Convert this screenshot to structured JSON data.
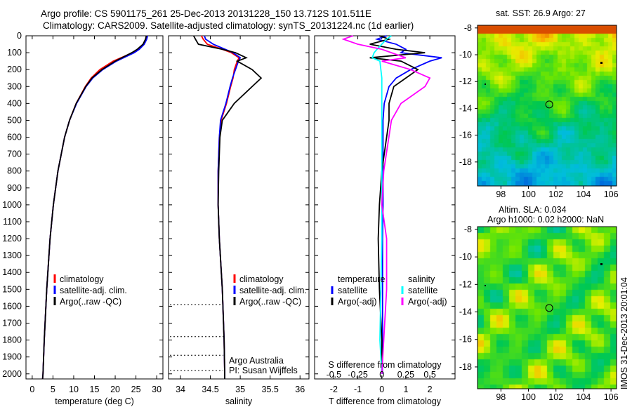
{
  "title_line1": "Argo profile: CS 5901175_261 25-Dec-2013 20131228_150 13.712S 101.511E",
  "title_line2": "Climatology: CARS2009. Satellite-adjusted climatology: synTS_20131224.nc (1d earlier)",
  "colors": {
    "clim": "#ff0000",
    "sat": "#0000ff",
    "argo": "#000000",
    "s_sat": "#00ffff",
    "s_argo": "#ff00ff"
  },
  "chart_data": [
    {
      "type": "line",
      "name": "temperature",
      "xlabel": "temperature (deg C)",
      "ylabel": "",
      "xlim": [
        -1.5,
        31.5
      ],
      "ylim": [
        2030,
        0
      ],
      "xticks": [
        "0",
        "5",
        "10",
        "15",
        "20",
        "25",
        "30"
      ],
      "xtick_vals": [
        0,
        5,
        10,
        15,
        20,
        25,
        30
      ],
      "yticks": [
        "0",
        "100",
        "200",
        "300",
        "400",
        "500",
        "600",
        "700",
        "800",
        "900",
        "1000",
        "1100",
        "1200",
        "1300",
        "1400",
        "1500",
        "1600",
        "1700",
        "1800",
        "1900",
        "2000"
      ],
      "depth": [
        0,
        20,
        50,
        80,
        100,
        150,
        200,
        250,
        300,
        400,
        500,
        600,
        800,
        1000,
        1200,
        1500,
        1800,
        2000,
        2030
      ],
      "series": [
        {
          "name": "climatology",
          "color": "clim",
          "values": [
            27.6,
            27.4,
            26.8,
            25.4,
            24.2,
            19.5,
            16.3,
            14.2,
            12.8,
            10.6,
            9.0,
            7.8,
            6.2,
            5.1,
            4.3,
            3.5,
            2.9,
            2.6,
            2.5
          ]
        },
        {
          "name": "satellite-adj. clim.",
          "color": "sat",
          "values": [
            27.8,
            27.6,
            27.0,
            25.8,
            24.6,
            20.3,
            17.0,
            14.6,
            13.0,
            10.7,
            9.0,
            7.8,
            6.2,
            5.1,
            4.3,
            3.5,
            2.9,
            2.6,
            2.5
          ]
        },
        {
          "name": "Argo(..raw -QC)",
          "color": "argo",
          "values": [
            27.5,
            27.3,
            26.7,
            25.3,
            24.0,
            20.0,
            16.8,
            14.4,
            12.9,
            10.6,
            9.0,
            7.8,
            6.2,
            5.1,
            4.3,
            3.5,
            2.9,
            2.6,
            2.5
          ]
        }
      ],
      "legend": [
        "climatology",
        "satellite-adj. clim.",
        "Argo(..raw -QC)"
      ],
      "legend_position": "lower-center"
    },
    {
      "type": "line",
      "name": "salinity",
      "xlabel": "salinity",
      "xlim": [
        33.8,
        36.15
      ],
      "ylim": [
        2030,
        0
      ],
      "xticks": [
        "34",
        "34.5",
        "35",
        "35.5",
        "36"
      ],
      "xtick_vals": [
        34,
        34.5,
        35,
        35.5,
        36
      ],
      "depth": [
        0,
        20,
        50,
        80,
        100,
        130,
        150,
        200,
        250,
        300,
        400,
        500,
        600,
        800,
        1000,
        1200,
        1500,
        1800,
        2000,
        2030
      ],
      "series": [
        {
          "name": "climatology",
          "color": "clim",
          "values": [
            34.35,
            34.38,
            34.45,
            34.7,
            34.85,
            34.98,
            34.95,
            34.9,
            34.88,
            34.84,
            34.77,
            34.68,
            34.65,
            34.63,
            34.63,
            34.65,
            34.7,
            34.73,
            34.74,
            34.74
          ]
        },
        {
          "name": "satellite-adj. clim.",
          "color": "sat",
          "values": [
            34.4,
            34.42,
            34.55,
            34.75,
            34.88,
            35.0,
            34.97,
            34.92,
            34.87,
            34.83,
            34.76,
            34.67,
            34.65,
            34.63,
            34.63,
            34.65,
            34.7,
            34.73,
            34.74,
            34.74
          ]
        },
        {
          "name": "Argo(..raw -QC)",
          "color": "argo",
          "values": [
            34.22,
            34.25,
            34.3,
            34.7,
            34.92,
            35.1,
            34.95,
            35.2,
            35.35,
            35.2,
            34.9,
            34.7,
            34.66,
            34.64,
            34.63,
            34.65,
            34.7,
            34.73,
            34.74,
            34.74
          ]
        }
      ],
      "legend": [
        "climatology",
        "satellite-adj. clim.",
        "Argo(..raw -QC)"
      ],
      "legend_position": "lower-center",
      "annotations": [
        "Argo Australia",
        "PI: Susan Wijffels"
      ],
      "marker_depths": [
        1590,
        1780,
        1890,
        1980
      ]
    },
    {
      "type": "line",
      "name": "differences",
      "xlabel": "T difference from climatology",
      "x2label": "S difference from climatology",
      "xlim": [
        -2.8,
        3.05
      ],
      "ylim": [
        2030,
        0
      ],
      "xticks": [
        "-2",
        "-1",
        "0",
        "1",
        "2"
      ],
      "xtick_vals": [
        -2,
        -1,
        0,
        1,
        2
      ],
      "x2ticks": [
        "-0.5",
        "-0.25",
        "0",
        "0.25",
        "0.5"
      ],
      "x2tick_vals": [
        -0.5,
        -0.25,
        0,
        0.25,
        0.5
      ],
      "depth": [
        0,
        20,
        50,
        80,
        100,
        130,
        150,
        200,
        250,
        300,
        400,
        500,
        800,
        1000,
        1200,
        1500,
        1800,
        2000
      ],
      "series": [
        {
          "name": "temperature satellite",
          "color": "sat",
          "scale": "T",
          "values": [
            0.2,
            -0.2,
            0.6,
            1.0,
            0.8,
            2.5,
            2.0,
            1.2,
            0.6,
            0.3,
            0.1,
            0.05,
            0.05,
            0.05,
            0.03,
            0.03,
            0.03,
            0.02
          ]
        },
        {
          "name": "temperature Argo(-adj)",
          "color": "argo",
          "scale": "T",
          "values": [
            -0.1,
            0.3,
            -0.5,
            0.6,
            1.8,
            -0.5,
            0.8,
            1.5,
            1.0,
            0.5,
            0.3,
            0.3,
            0.0,
            -0.1,
            -0.15,
            -0.1,
            0.0,
            0.0
          ]
        },
        {
          "name": "salinity satellite",
          "color": "s_sat",
          "scale": "S",
          "values": [
            0.1,
            0.05,
            0.0,
            -0.05,
            -0.08,
            -0.1,
            -0.02,
            -0.01,
            0.0,
            0.0,
            0.0,
            0.0,
            0.0,
            0.0,
            0.0,
            -0.01,
            -0.02,
            0.0
          ]
        },
        {
          "name": "salinity Argo(-adj)",
          "color": "s_argo",
          "scale": "S",
          "values": [
            -0.3,
            -0.4,
            -0.25,
            0.0,
            0.1,
            0.25,
            0.0,
            0.3,
            0.5,
            0.45,
            0.2,
            0.1,
            0.02,
            0.0,
            0.05,
            0.05,
            0.02,
            0.0
          ]
        }
      ],
      "legend_titles": [
        "temperature",
        "salinity"
      ],
      "legend": [
        "satellite",
        "Argo(-adj)",
        "satellite",
        "Argo(-adj)"
      ],
      "legend_position": "lower-center"
    }
  ],
  "maps": [
    {
      "title": "sat. SST: 26.9 Argo: 27",
      "lon_ticks": [
        "98",
        "100",
        "102",
        "104",
        "106"
      ],
      "lat_ticks": [
        "-8",
        "-10",
        "-12",
        "-14",
        "-16",
        "-18"
      ],
      "profile_lon": 101.511,
      "profile_lat": -13.712
    },
    {
      "title": "Altim. SLA: 0.034",
      "subtitle": "Argo h1000: 0.02 h2000: NaN",
      "lon_ticks": [
        "98",
        "100",
        "102",
        "104",
        "106"
      ],
      "lat_ticks": [
        "-8",
        "-10",
        "-12",
        "-14",
        "-16",
        "-18"
      ],
      "profile_lon": 101.511,
      "profile_lat": -13.712
    }
  ],
  "stamp": "IMOS 31-Dec-2013 20:01:04"
}
